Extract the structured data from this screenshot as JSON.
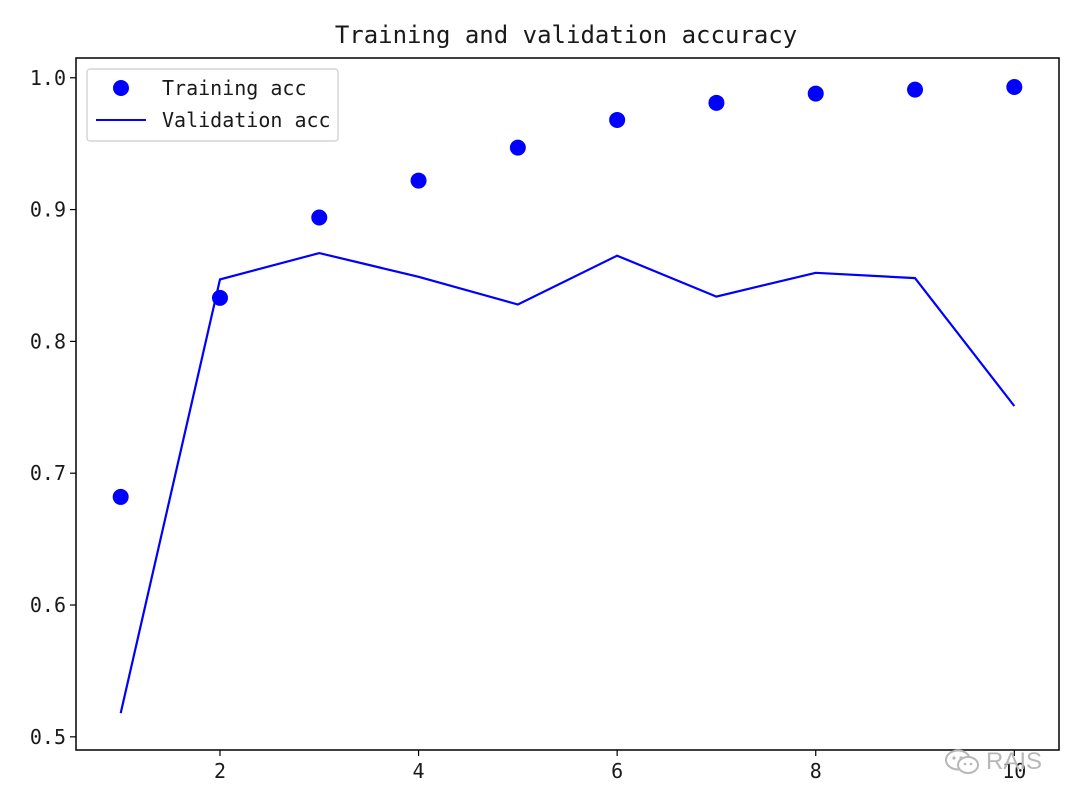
{
  "chart_data": {
    "type": "line",
    "title": "Training and validation accuracy",
    "xlabel": "",
    "ylabel": "",
    "xlim": [
      0.55,
      10.45
    ],
    "ylim": [
      0.49,
      1.015
    ],
    "x_ticks": [
      2,
      4,
      6,
      8,
      10
    ],
    "x_tick_labels": [
      "2",
      "4",
      "6",
      "8",
      "10"
    ],
    "y_ticks": [
      0.5,
      0.6,
      0.7,
      0.8,
      0.9,
      1.0
    ],
    "y_tick_labels": [
      "0.5",
      "0.6",
      "0.7",
      "0.8",
      "0.9",
      "1.0"
    ],
    "grid": false,
    "legend_position": "top-left",
    "series": [
      {
        "name": "Training acc",
        "style": "markers",
        "color": "#0000ff",
        "x": [
          1,
          2,
          3,
          4,
          5,
          6,
          7,
          8,
          9,
          10
        ],
        "y": [
          0.682,
          0.833,
          0.894,
          0.922,
          0.947,
          0.968,
          0.981,
          0.988,
          0.991,
          0.993
        ]
      },
      {
        "name": "Validation acc",
        "style": "line",
        "color": "#0000ff",
        "x": [
          1,
          2,
          3,
          4,
          5,
          6,
          7,
          8,
          9,
          10
        ],
        "y": [
          0.518,
          0.847,
          0.867,
          0.849,
          0.828,
          0.865,
          0.834,
          0.852,
          0.848,
          0.751
        ]
      }
    ]
  },
  "watermark": {
    "text": "RAIS",
    "icon": "wechat-icon",
    "color": "#b8b8b8"
  }
}
